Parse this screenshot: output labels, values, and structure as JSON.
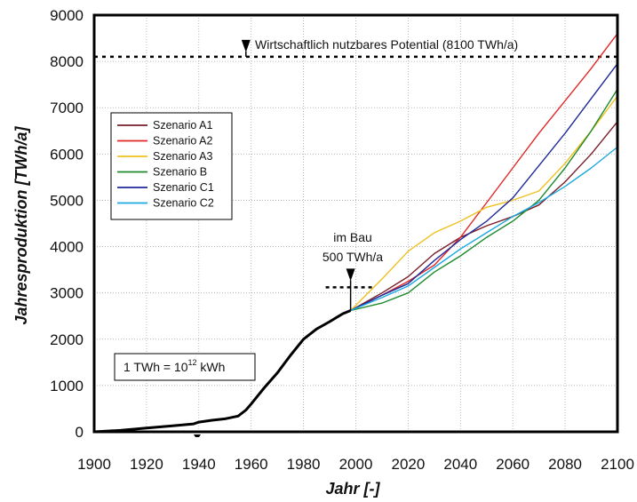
{
  "chart_data": {
    "type": "line",
    "xlabel": "Jahr [-]",
    "ylabel": "Jahresproduktion [TWh/a]",
    "xlim": [
      1900,
      2100
    ],
    "ylim": [
      0,
      9000
    ],
    "xticks": [
      1900,
      1920,
      1940,
      1960,
      1980,
      2000,
      2020,
      2040,
      2060,
      2080,
      2100
    ],
    "yticks": [
      0,
      1000,
      2000,
      3000,
      4000,
      5000,
      6000,
      7000,
      8000,
      9000
    ],
    "grid": true,
    "legend_position": "left-middle",
    "historical": {
      "color": "#000000",
      "x": [
        1900,
        1910,
        1920,
        1930,
        1938,
        1940,
        1945,
        1950,
        1955,
        1958,
        1960,
        1965,
        1970,
        1975,
        1980,
        1985,
        1990,
        1995,
        1998
      ],
      "y": [
        0,
        30,
        80,
        130,
        170,
        210,
        250,
        280,
        340,
        470,
        600,
        950,
        1270,
        1650,
        2000,
        2220,
        2380,
        2550,
        2620
      ]
    },
    "series": [
      {
        "name": "Szenario A1",
        "color": "#7a1e2a",
        "x": [
          1998,
          2010,
          2020,
          2030,
          2040,
          2050,
          2060,
          2070,
          2080,
          2090,
          2100
        ],
        "y": [
          2620,
          3000,
          3350,
          3850,
          4200,
          4450,
          4650,
          4900,
          5400,
          6000,
          6700
        ]
      },
      {
        "name": "Szenario A2",
        "color": "#e02828",
        "x": [
          1998,
          2010,
          2020,
          2030,
          2040,
          2050,
          2060,
          2070,
          2080,
          2090,
          2100
        ],
        "y": [
          2620,
          2950,
          3250,
          3600,
          4200,
          4950,
          5700,
          6450,
          7150,
          7850,
          8600
        ]
      },
      {
        "name": "Szenario A3",
        "color": "#f0c020",
        "x": [
          1998,
          2010,
          2020,
          2030,
          2040,
          2050,
          2060,
          2070,
          2080,
          2090,
          2100
        ],
        "y": [
          2620,
          3300,
          3900,
          4300,
          4550,
          4850,
          5000,
          5200,
          5800,
          6500,
          7250
        ]
      },
      {
        "name": "Szenario B",
        "color": "#1e8a2e",
        "x": [
          1998,
          2010,
          2020,
          2030,
          2040,
          2050,
          2060,
          2070,
          2080,
          2090,
          2100
        ],
        "y": [
          2620,
          2780,
          3000,
          3450,
          3800,
          4200,
          4550,
          5000,
          5700,
          6500,
          7400
        ]
      },
      {
        "name": "Szenario C1",
        "color": "#1f2a9a",
        "x": [
          1998,
          2010,
          2020,
          2030,
          2040,
          2050,
          2060,
          2070,
          2080,
          2090,
          2100
        ],
        "y": [
          2620,
          2950,
          3200,
          3700,
          4150,
          4550,
          5050,
          5750,
          6450,
          7200,
          7950
        ]
      },
      {
        "name": "Szenario C2",
        "color": "#1aa8e0",
        "x": [
          1998,
          2010,
          2020,
          2030,
          2040,
          2050,
          2060,
          2070,
          2080,
          2090,
          2100
        ],
        "y": [
          2620,
          2900,
          3150,
          3550,
          3950,
          4300,
          4650,
          4950,
          5300,
          5700,
          6150
        ]
      }
    ],
    "annotations": {
      "potential_label": "Wirtschaftlich nutzbares Potential (8100 TWh/a)",
      "potential_value": 8100,
      "potential_marker_x": 1958,
      "construction_line1": "im Bau",
      "construction_line2": "500 TWh/a",
      "construction_marker_x": 1998,
      "construction_level": 3120,
      "unit_note_prefix": "1 TWh = 10",
      "unit_note_exp": "12",
      "unit_note_suffix": " kWh"
    }
  }
}
